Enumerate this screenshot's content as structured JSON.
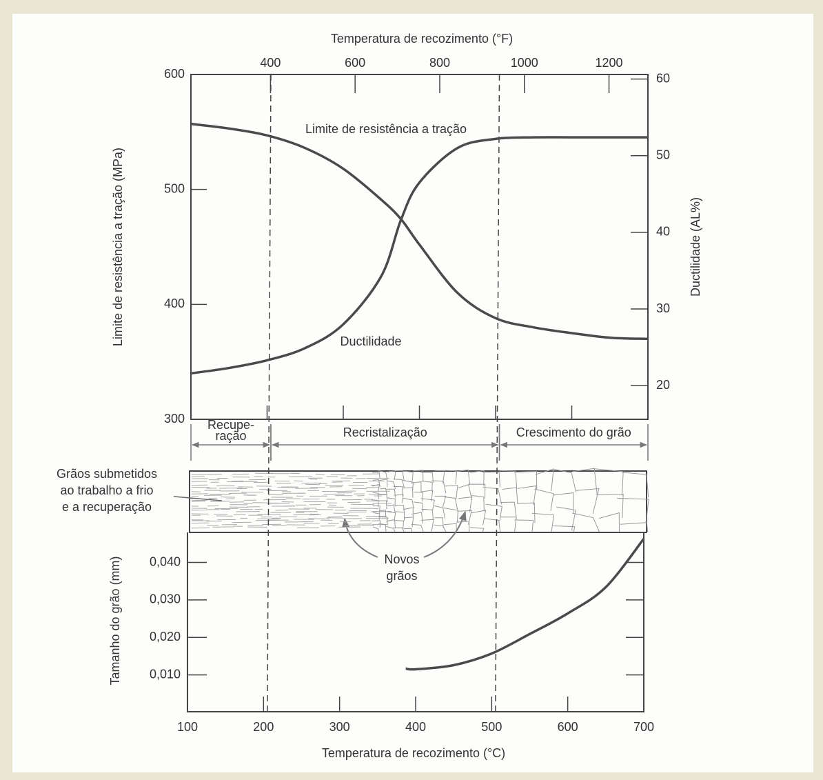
{
  "chart_data": [
    {
      "type": "line",
      "x2label": "Temperatura de recozimento (°F)",
      "ylabel": "Limite de resistência a tração (MPa)",
      "y2label": "Ductilidade (AL%)",
      "xlim": [
        100,
        700
      ],
      "x2lim": [
        212,
        1292
      ],
      "x2ticks": [
        400,
        600,
        800,
        1000,
        1200
      ],
      "ylim": [
        300,
        600
      ],
      "yticks": [
        300,
        400,
        500,
        600
      ],
      "y2lim": [
        15.6,
        60.6
      ],
      "y2ticks": [
        20,
        30,
        40,
        50,
        60
      ],
      "x": [
        100,
        150,
        200,
        250,
        300,
        350,
        376,
        400,
        450,
        500,
        550,
        600,
        650,
        700
      ],
      "series": [
        {
          "name": "Limite de resistência a tração",
          "color": "#4a4a4a",
          "values": [
            557,
            553,
            547,
            536,
            518,
            491,
            474,
            452,
            410,
            388,
            380,
            375,
            371,
            370
          ]
        },
        {
          "name": "Ductilidade",
          "color": "#4a4a4a",
          "axis": "y2",
          "values": [
            21.6,
            22.3,
            23.3,
            24.9,
            28,
            34.3,
            41.7,
            46.5,
            51,
            52.2,
            52.4,
            52.4,
            52.4,
            52.4
          ]
        }
      ],
      "regions": [
        {
          "label": [
            "Recupe-",
            "ração"
          ],
          "range": [
            100,
            205
          ]
        },
        {
          "label": [
            "Recristalização"
          ],
          "range": [
            205,
            505
          ]
        },
        {
          "label": [
            "Crescimento do grão"
          ],
          "range": [
            505,
            700
          ]
        }
      ]
    },
    {
      "type": "line",
      "xlabel": "Temperatura de recozimento (°C)",
      "ylabel": "Tamanho do grão (mm)",
      "xlim": [
        100,
        700
      ],
      "xticks": [
        100,
        200,
        300,
        400,
        500,
        600,
        700
      ],
      "ylim": [
        0,
        0.048
      ],
      "yticks": [
        {
          "value": 0.01,
          "label": "0,010"
        },
        {
          "value": 0.02,
          "label": "0,020"
        },
        {
          "value": 0.03,
          "label": "0,030"
        },
        {
          "value": 0.04,
          "label": "0,040"
        }
      ],
      "x": [
        387,
        400,
        450,
        500,
        550,
        600,
        650,
        700
      ],
      "values": [
        0.0117,
        0.0115,
        0.0126,
        0.0157,
        0.0209,
        0.0264,
        0.0334,
        0.0463
      ],
      "color": "#4a4a4a",
      "annotations": [
        [
          "Grãos submetidos",
          "ao trabalho a frio",
          "e a recuperação"
        ],
        [
          "Novos",
          "grãos"
        ]
      ]
    }
  ]
}
